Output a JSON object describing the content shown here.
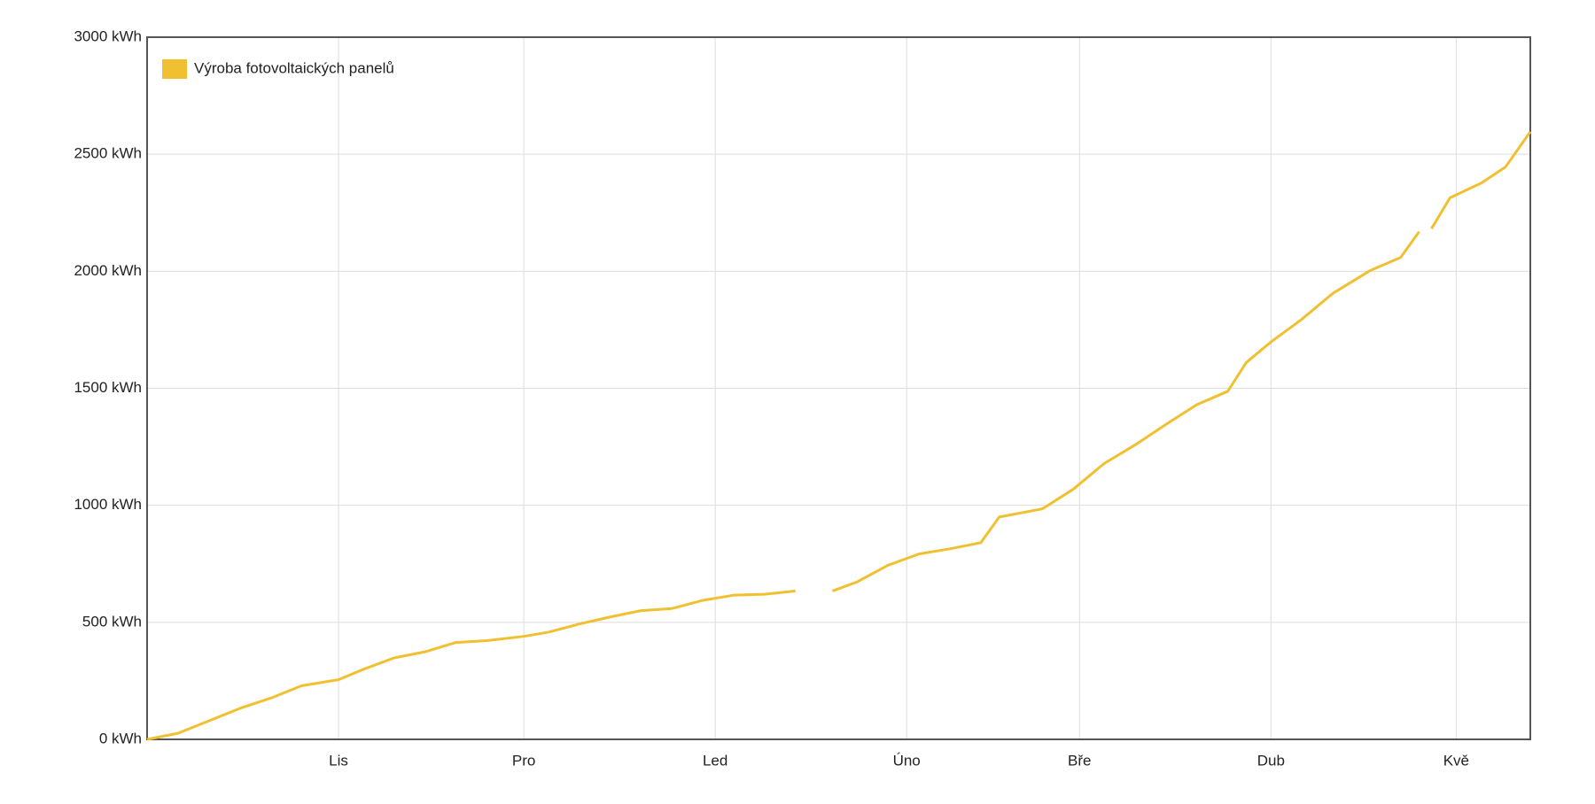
{
  "chart_data": {
    "type": "line",
    "x": [
      0,
      5,
      10,
      15,
      20,
      25,
      31,
      35,
      40,
      45,
      50,
      55,
      61,
      65,
      70,
      75,
      80,
      85,
      90,
      95,
      100,
      105,
      108,
      111,
      115,
      120,
      125,
      130,
      135,
      138,
      145,
      150,
      155,
      160,
      165,
      170,
      175,
      178,
      182,
      187,
      192,
      198,
      203,
      206,
      207,
      208,
      211,
      216,
      220,
      224
    ],
    "series": [
      {
        "name": "Výroba fotovoltaických panelů",
        "color": "#f0c030",
        "values": [
          0,
          26,
          79,
          132,
          176,
          229,
          255,
          299,
          348,
          374,
          414,
          422,
          440,
          458,
          493,
          523,
          550,
          559,
          594,
          616,
          620,
          634,
          null,
          634,
          673,
          744,
          792,
          814,
          840,
          950,
          985,
          1069,
          1179,
          1258,
          1346,
          1430,
          1487,
          1610,
          1698,
          1795,
          1905,
          2002,
          2059,
          2169,
          null,
          2182,
          2314,
          2376,
          2446,
          2596
        ]
      }
    ],
    "xlim": [
      0,
      224
    ],
    "xticks": [
      {
        "value": 31,
        "label": "Lis"
      },
      {
        "value": 61,
        "label": "Pro"
      },
      {
        "value": 92,
        "label": "Led"
      },
      {
        "value": 123,
        "label": "Úno"
      },
      {
        "value": 151,
        "label": "Bře"
      },
      {
        "value": 182,
        "label": "Dub"
      },
      {
        "value": 212,
        "label": "Kvě"
      }
    ],
    "ylim": [
      0,
      3000
    ],
    "yticks": [
      {
        "value": 0,
        "label": "0 kWh"
      },
      {
        "value": 500,
        "label": "500 kWh"
      },
      {
        "value": 1000,
        "label": "1000 kWh"
      },
      {
        "value": 1500,
        "label": "1500 kWh"
      },
      {
        "value": 2000,
        "label": "2000 kWh"
      },
      {
        "value": 2500,
        "label": "2500 kWh"
      },
      {
        "value": 3000,
        "label": "3000 kWh"
      }
    ],
    "grid": true,
    "legend": "top-left"
  }
}
